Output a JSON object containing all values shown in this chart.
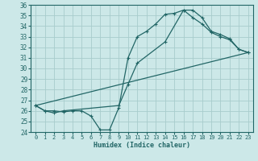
{
  "xlabel": "Humidex (Indice chaleur)",
  "bg_color": "#cce8e8",
  "grid_color": "#a8cccc",
  "line_color": "#226666",
  "xlim": [
    -0.5,
    23.5
  ],
  "ylim": [
    24,
    36
  ],
  "yticks": [
    24,
    25,
    26,
    27,
    28,
    29,
    30,
    31,
    32,
    33,
    34,
    35,
    36
  ],
  "xticks": [
    0,
    1,
    2,
    3,
    4,
    5,
    6,
    7,
    8,
    9,
    10,
    11,
    12,
    13,
    14,
    15,
    16,
    17,
    18,
    19,
    20,
    21,
    22,
    23
  ],
  "line1_x": [
    0,
    1,
    2,
    3,
    4,
    5,
    6,
    7,
    8,
    9,
    10,
    11,
    12,
    13,
    14,
    15,
    16,
    17,
    18,
    19,
    20,
    21,
    22,
    23
  ],
  "line1_y": [
    26.5,
    26.0,
    26.0,
    25.9,
    26.0,
    26.0,
    25.5,
    24.2,
    24.2,
    26.3,
    31.0,
    33.0,
    33.5,
    34.2,
    35.1,
    35.2,
    35.5,
    34.8,
    34.2,
    33.4,
    33.0,
    32.7,
    31.8,
    31.5
  ],
  "line2_x": [
    0,
    1,
    2,
    3,
    9,
    10,
    11,
    14,
    16,
    17,
    18,
    19,
    20,
    21,
    22,
    23
  ],
  "line2_y": [
    26.5,
    26.0,
    25.8,
    26.0,
    26.5,
    28.5,
    30.5,
    32.5,
    35.5,
    35.5,
    34.8,
    33.5,
    33.2,
    32.8,
    31.8,
    31.5
  ],
  "line3_x": [
    0,
    23
  ],
  "line3_y": [
    26.5,
    31.5
  ]
}
